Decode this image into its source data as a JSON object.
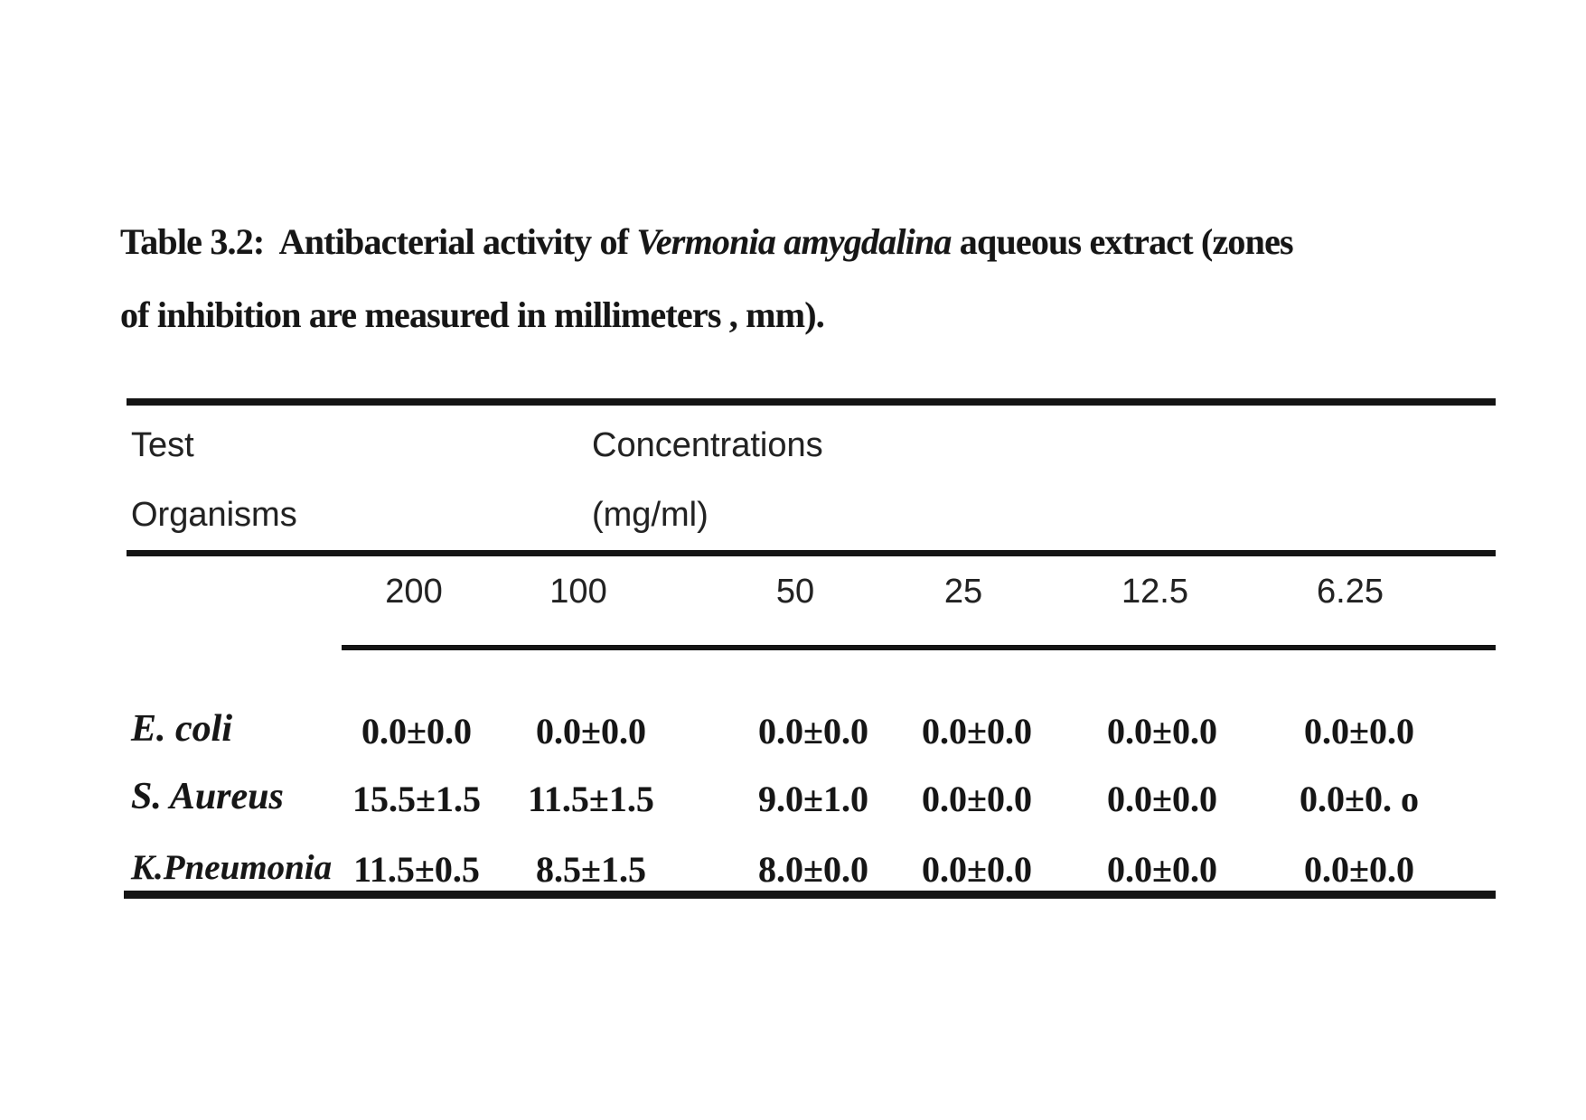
{
  "caption": {
    "part1": "Table 3.2:  Antibacterial activity of ",
    "species_italic": "Vermonia amygdalina",
    "part3": " aqueous extract (zones",
    "line2": "of inhibition are measured in millimeters , mm)."
  },
  "table": {
    "header": {
      "col1_line1": "Test",
      "col1_line2": "Organisms",
      "col2_line1": "Concentrations",
      "col2_line2": "(mg/ml)"
    },
    "concentrations": [
      "200",
      "100",
      "50",
      "25",
      "12.5",
      "6.25"
    ],
    "rows": [
      {
        "organism": "E. coli",
        "values": [
          "0.0±0.0",
          "0.0±0.0",
          "0.0±0.0",
          "0.0±0.0",
          "0.0±0.0",
          "0.0±0.0"
        ]
      },
      {
        "organism": "S. Aureus",
        "values": [
          "15.5±1.5",
          "11.5±1.5",
          "9.0±1.0",
          "0.0±0.0",
          "0.0±0.0",
          "0.0±0. o"
        ]
      },
      {
        "organism": "K.Pneumonia",
        "values": [
          "11.5±0.5",
          "8.5±1.5",
          "8.0±0.0",
          "0.0±0.0",
          "0.0±0.0",
          "0.0±0.0"
        ]
      }
    ]
  }
}
